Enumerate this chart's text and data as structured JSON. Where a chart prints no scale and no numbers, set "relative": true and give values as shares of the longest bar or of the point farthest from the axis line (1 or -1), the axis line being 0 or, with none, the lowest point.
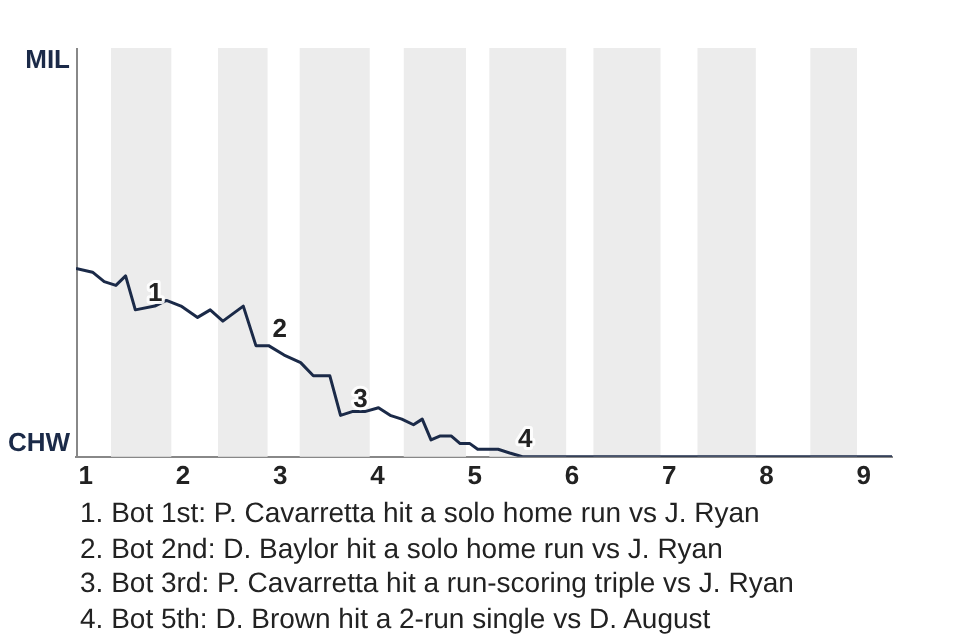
{
  "chart_data": {
    "type": "line",
    "relative": true,
    "x": [
      0.9,
      1.07,
      1.19,
      1.31,
      1.41,
      1.51,
      1.71,
      1.83,
      1.98,
      2.15,
      2.28,
      2.41,
      2.62,
      2.75,
      2.88,
      3.04,
      3.21,
      3.34,
      3.51,
      3.62,
      3.74,
      3.87,
      4.01,
      4.13,
      4.25,
      4.37,
      4.46,
      4.55,
      4.64,
      4.76,
      4.85,
      4.95,
      5.03,
      5.24,
      5.36,
      5.49,
      9.29
    ],
    "series": [
      {
        "color": "#1b2a48",
        "values": [
          1,
          0.98,
          0.93,
          0.91,
          0.96,
          0.78,
          0.8,
          0.83,
          0.8,
          0.74,
          0.78,
          0.72,
          0.8,
          0.59,
          0.59,
          0.54,
          0.5,
          0.43,
          0.43,
          0.22,
          0.24,
          0.24,
          0.26,
          0.22,
          0.2,
          0.17,
          0.2,
          0.09,
          0.11,
          0.11,
          0.07,
          0.07,
          0.04,
          0.04,
          0.02,
          0,
          0
        ]
      }
    ],
    "xlim": [
      0.9,
      9.29
    ],
    "xticks": [
      1,
      2,
      3,
      4,
      5,
      6,
      7,
      8,
      9
    ],
    "marker": "none",
    "bands": [
      {
        "axis": "x",
        "from": 1.26,
        "to": 1.88,
        "color": "#ececec"
      },
      {
        "axis": "x",
        "from": 2.36,
        "to": 2.87,
        "color": "#ececec"
      },
      {
        "axis": "x",
        "from": 3.2,
        "to": 3.92,
        "color": "#ececec"
      },
      {
        "axis": "x",
        "from": 4.27,
        "to": 4.91,
        "color": "#ececec"
      },
      {
        "axis": "x",
        "from": 5.15,
        "to": 5.94,
        "color": "#ececec"
      },
      {
        "axis": "x",
        "from": 6.22,
        "to": 6.91,
        "color": "#ececec"
      },
      {
        "axis": "x",
        "from": 7.29,
        "to": 7.89,
        "color": "#ececec"
      },
      {
        "axis": "x",
        "from": 8.45,
        "to": 8.93,
        "color": "#ececec"
      }
    ],
    "annotations": [
      "MIL",
      "CHW",
      {
        "text": "1",
        "x": 1.57,
        "y": 0.8
      },
      {
        "text": "2",
        "x": 2.85,
        "y": 0.61
      },
      {
        "text": "3",
        "x": 3.68,
        "y": 0.24
      },
      {
        "text": "4",
        "x": 5.52,
        "y": 0
      },
      "1. Bot 1st: P. Cavarretta hit a solo home run vs J. Ryan",
      "2. Bot 2nd: D. Baylor hit a solo home run vs J. Ryan",
      "3. Bot 3rd: P. Cavarretta hit a run-scoring triple vs J. Ryan",
      "4. Bot 5th: D. Brown hit a 2-run single vs D. August"
    ]
  }
}
